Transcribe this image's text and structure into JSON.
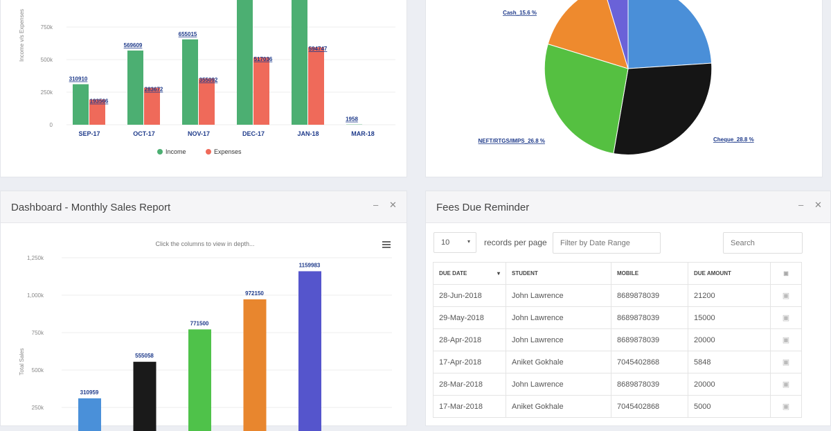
{
  "income_chart": {
    "chart_data": {
      "type": "bar",
      "ylabel": "Income v/s Expenses",
      "categories": [
        "SEP-17",
        "OCT-17",
        "NOV-17",
        "DEC-17",
        "JAN-18",
        "MAR-18"
      ],
      "series": [
        {
          "name": "Income",
          "color": "#4caf72",
          "values": [
            310910,
            569609,
            655015,
            1050000,
            1050000,
            1958
          ],
          "labels": [
            "310910",
            "569609",
            "655015",
            "",
            "",
            "1958"
          ]
        },
        {
          "name": "Expenses",
          "color": "#ef6a5a",
          "values": [
            193566,
            283672,
            355092,
            517036,
            594747,
            0
          ],
          "labels": [
            "193566",
            "283672",
            "355092",
            "517036",
            "594747",
            ""
          ]
        }
      ],
      "yticks": [
        "0",
        "250k",
        "500k",
        "750k"
      ],
      "ylim": [
        0,
        1000000
      ],
      "grid": true,
      "legend": "bottom"
    }
  },
  "payment_chart": {
    "chart_data": {
      "type": "pie",
      "slices": [
        {
          "label": "",
          "value": 24.0,
          "color": "#4a8fd8"
        },
        {
          "label": "Cheque_28.8 %",
          "value": 28.8,
          "color": "#151515"
        },
        {
          "label": "NEFT/RTGS/IMPS_26.8 %",
          "value": 26.8,
          "color": "#55c041"
        },
        {
          "label": "Cash_15.6 %",
          "value": 15.6,
          "color": "#ee8a2e"
        },
        {
          "label": "",
          "value": 4.8,
          "color": "#6a62d8"
        }
      ]
    }
  },
  "sales_panel": {
    "title": "Dashboard - Monthly Sales Report",
    "subtitle": "Click the columns to view in depth...",
    "chart_data": {
      "type": "bar",
      "ylabel": "Total Sales",
      "yticks": [
        "250k",
        "500k",
        "750k",
        "1,000k",
        "1,250k"
      ],
      "ylim": [
        250000,
        1250000
      ],
      "grid": true,
      "values": [
        310959,
        555058,
        771500,
        972150,
        1159983
      ],
      "labels": [
        "310959",
        "555058",
        "771500",
        "972150",
        "1159983"
      ],
      "colors": [
        "#4a90d9",
        "#1a1a1a",
        "#4fc24a",
        "#e8862e",
        "#5555cc"
      ]
    }
  },
  "fees_panel": {
    "title": "Fees Due Reminder",
    "page_size": "10",
    "records_label": "records per page",
    "date_filter_placeholder": "Filter by Date Range",
    "search_placeholder": "Search",
    "columns": [
      "DUE DATE",
      "STUDENT",
      "MOBILE",
      "DUE AMOUNT"
    ],
    "rows": [
      [
        "28-Jun-2018",
        "John Lawrence",
        "8689878039",
        "21200"
      ],
      [
        "29-May-2018",
        "John Lawrence",
        "8689878039",
        "15000"
      ],
      [
        "28-Apr-2018",
        "John Lawrence",
        "8689878039",
        "20000"
      ],
      [
        "17-Apr-2018",
        "Aniket Gokhale",
        "7045402868",
        "5848"
      ],
      [
        "28-Mar-2018",
        "John Lawrence",
        "8689878039",
        "20000"
      ],
      [
        "17-Mar-2018",
        "Aniket Gokhale",
        "7045402868",
        "5000"
      ]
    ]
  }
}
